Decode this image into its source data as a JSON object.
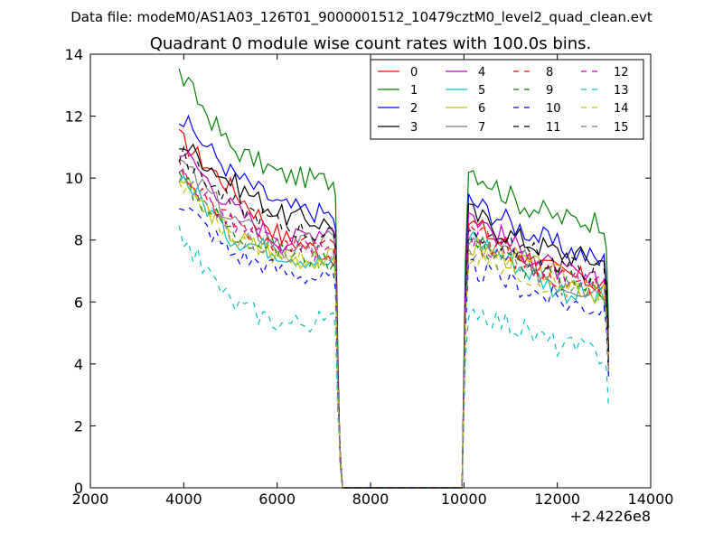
{
  "chart_data": {
    "type": "line",
    "suptitle": "Data file: modeM0/AS1A03_126T01_9000001512_10479cztM0_level2_quad_clean.evt",
    "title": "Quadrant 0 module wise count rates with 100.0s bins.",
    "xlabel": "",
    "ylabel": "",
    "x_offset_label": "+2.4226e8",
    "xlim": [
      2000,
      14000
    ],
    "ylim": [
      0,
      14
    ],
    "xticks": [
      "2000",
      "4000",
      "6000",
      "8000",
      "10000",
      "12000",
      "14000"
    ],
    "yticks": [
      "0",
      "2",
      "4",
      "6",
      "8",
      "10",
      "12",
      "14"
    ],
    "grid": false,
    "legend_position": "top-right",
    "segments": [
      {
        "x_start": 3900,
        "x_end": 7400
      },
      {
        "x_start": 10000,
        "x_end": 13100
      }
    ],
    "series": [
      {
        "name": "0",
        "color": "#ff0000",
        "style": "solid",
        "seg1": [
          11.3,
          9.7,
          8.1,
          7.5
        ],
        "seg2": [
          8.6,
          7.7,
          6.9,
          6.6
        ]
      },
      {
        "name": "1",
        "color": "#008000",
        "style": "solid",
        "seg1": [
          13.4,
          11.0,
          10.1,
          9.9
        ],
        "seg2": [
          10.4,
          9.3,
          8.7,
          8.6
        ]
      },
      {
        "name": "2",
        "color": "#0000ff",
        "style": "solid",
        "seg1": [
          12.0,
          10.2,
          9.1,
          8.8
        ],
        "seg2": [
          9.3,
          8.5,
          7.8,
          7.3
        ]
      },
      {
        "name": "3",
        "color": "#000000",
        "style": "solid",
        "seg1": [
          11.2,
          9.9,
          8.8,
          8.5
        ],
        "seg2": [
          8.9,
          8.1,
          7.6,
          7.3
        ]
      },
      {
        "name": "4",
        "color": "#bf00bf",
        "style": "solid",
        "seg1": [
          11.0,
          9.1,
          7.9,
          8.5
        ],
        "seg2": [
          8.9,
          7.8,
          7.0,
          6.5
        ]
      },
      {
        "name": "5",
        "color": "#00bfbf",
        "style": "solid",
        "seg1": [
          10.2,
          8.1,
          7.6,
          7.2
        ],
        "seg2": [
          8.2,
          7.3,
          6.4,
          6.1
        ]
      },
      {
        "name": "6",
        "color": "#bfbf00",
        "style": "solid",
        "seg1": [
          10.0,
          8.2,
          7.4,
          7.4
        ],
        "seg2": [
          7.8,
          7.4,
          6.8,
          6.2
        ]
      },
      {
        "name": "7",
        "color": "#808080",
        "style": "solid",
        "seg1": [
          10.6,
          8.7,
          7.8,
          8.0
        ],
        "seg2": [
          8.0,
          7.5,
          6.6,
          6.4
        ]
      },
      {
        "name": "8",
        "color": "#ff0000",
        "style": "dashed",
        "seg1": [
          10.5,
          8.6,
          7.9,
          7.8
        ],
        "seg2": [
          8.3,
          7.5,
          6.8,
          6.6
        ]
      },
      {
        "name": "9",
        "color": "#008000",
        "style": "dashed",
        "seg1": [
          10.0,
          8.3,
          7.6,
          7.3
        ],
        "seg2": [
          8.0,
          7.3,
          6.7,
          6.4
        ]
      },
      {
        "name": "10",
        "color": "#0000ff",
        "style": "dashed",
        "seg1": [
          9.3,
          7.6,
          7.0,
          6.7
        ],
        "seg2": [
          7.1,
          6.6,
          6.0,
          5.8
        ]
      },
      {
        "name": "11",
        "color": "#000000",
        "style": "dashed",
        "seg1": [
          10.8,
          9.2,
          8.5,
          8.1
        ],
        "seg2": [
          8.4,
          7.8,
          7.2,
          6.9
        ]
      },
      {
        "name": "12",
        "color": "#bf00bf",
        "style": "dashed",
        "seg1": [
          10.3,
          8.5,
          7.8,
          7.6
        ],
        "seg2": [
          8.1,
          7.4,
          6.8,
          6.4
        ]
      },
      {
        "name": "13",
        "color": "#00bfbf",
        "style": "dashed",
        "seg1": [
          8.2,
          6.0,
          5.3,
          5.4
        ],
        "seg2": [
          5.9,
          5.2,
          4.6,
          4.3
        ]
      },
      {
        "name": "14",
        "color": "#bfbf00",
        "style": "dashed",
        "seg1": [
          9.9,
          8.1,
          7.5,
          7.3
        ],
        "seg2": [
          7.6,
          7.1,
          6.5,
          6.2
        ]
      },
      {
        "name": "15",
        "color": "#808080",
        "style": "dashed",
        "seg1": [
          10.1,
          8.3,
          7.6,
          7.5
        ],
        "seg2": [
          7.8,
          7.2,
          6.6,
          6.3
        ]
      }
    ]
  }
}
